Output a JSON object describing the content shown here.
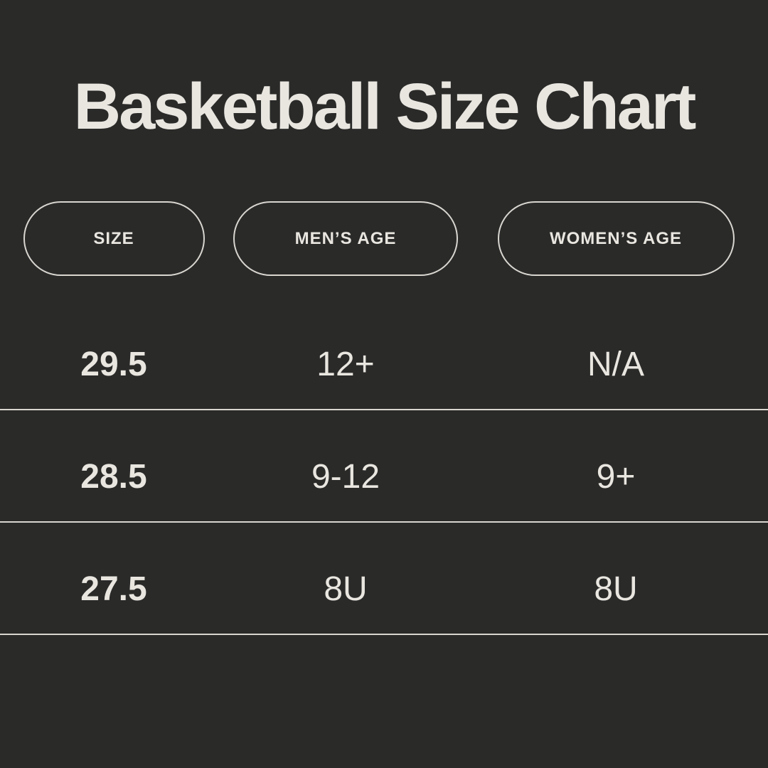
{
  "title": "Basketball Size Chart",
  "colors": {
    "background": "#2a2a29",
    "text": "#e9e6e0",
    "divider": "#d9d6d0",
    "pill_border": "#d9d6d0"
  },
  "table": {
    "headers": [
      {
        "label": "SIZE"
      },
      {
        "label": "MEN’S AGE"
      },
      {
        "label": "WOMEN’S AGE"
      }
    ],
    "rows": [
      {
        "size": "29.5",
        "mens_age": "12+",
        "womens_age": "N/A"
      },
      {
        "size": "28.5",
        "mens_age": "9-12",
        "womens_age": "9+"
      },
      {
        "size": "27.5",
        "mens_age": "8U",
        "womens_age": "8U"
      }
    ]
  },
  "chart_data": {
    "type": "table",
    "title": "Basketball Size Chart",
    "columns": [
      "SIZE",
      "MEN’S AGE",
      "WOMEN’S AGE"
    ],
    "rows": [
      [
        "29.5",
        "12+",
        "N/A"
      ],
      [
        "28.5",
        "9-12",
        "9+"
      ],
      [
        "27.5",
        "8U",
        "8U"
      ]
    ]
  }
}
